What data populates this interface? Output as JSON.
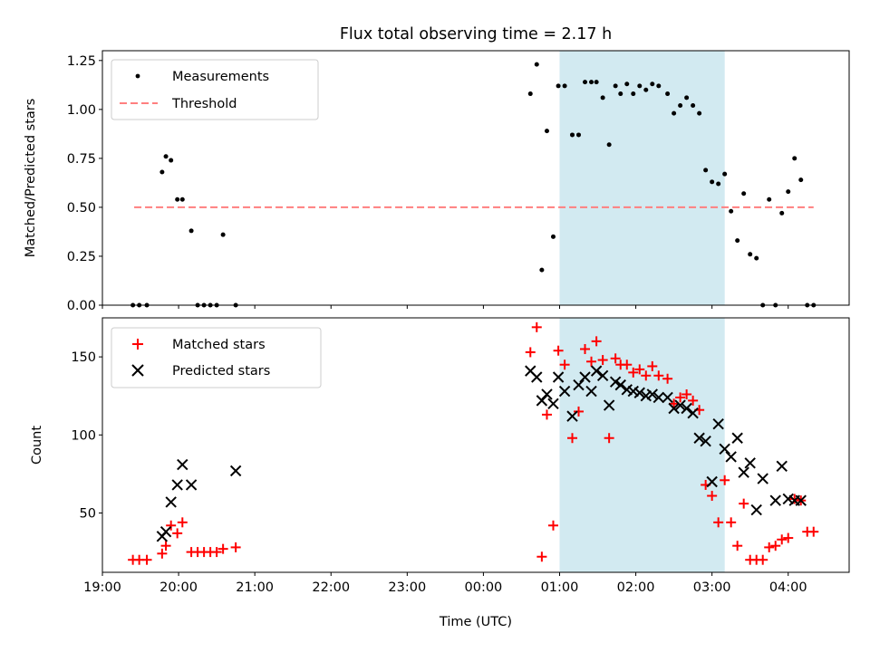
{
  "title": "Flux total observing time = 2.17 h",
  "colors": {
    "matched": "#ff0000",
    "predicted": "#000000",
    "threshold": "#ff7f7f",
    "span": "#add8e6"
  },
  "chart_data": [
    {
      "type": "scatter",
      "title": "Flux total observing time = 2.17 h",
      "xlabel": "",
      "ylabel": "Matched/Predicted stars",
      "x_axis": "time_utc",
      "xlim": [
        "19:00",
        "04:48"
      ],
      "ylim": [
        0,
        1.3
      ],
      "yticks": [
        "0.00",
        "0.25",
        "0.50",
        "0.75",
        "1.00",
        "1.25"
      ],
      "legend": {
        "location": "top-left",
        "entries": [
          "Measurements",
          "Threshold"
        ]
      },
      "highlight_span": [
        "01:00",
        "03:10"
      ],
      "threshold": {
        "name": "Threshold",
        "value": 0.5,
        "x_range": [
          "19:25",
          "04:20"
        ],
        "style": "dashed"
      },
      "series": [
        {
          "name": "Measurements",
          "marker": "dot",
          "x": [
            "19:24",
            "19:29",
            "19:35",
            "19:47",
            "19:50",
            "19:54",
            "19:59",
            "20:03",
            "20:10",
            "20:15",
            "20:20",
            "20:25",
            "20:30",
            "20:35",
            "20:45",
            "00:37",
            "00:42",
            "00:46",
            "00:50",
            "00:55",
            "00:59",
            "01:04",
            "01:10",
            "01:15",
            "01:20",
            "01:25",
            "01:29",
            "01:34",
            "01:39",
            "01:44",
            "01:48",
            "01:53",
            "01:58",
            "02:03",
            "02:08",
            "02:13",
            "02:18",
            "02:25",
            "02:30",
            "02:35",
            "02:40",
            "02:45",
            "02:50",
            "02:55",
            "03:00",
            "03:05",
            "03:10",
            "03:15",
            "03:20",
            "03:25",
            "03:30",
            "03:35",
            "03:40",
            "03:45",
            "03:50",
            "03:55",
            "04:00",
            "04:05",
            "04:10",
            "04:15",
            "04:20"
          ],
          "y": [
            0.0,
            0.0,
            0.0,
            0.68,
            0.76,
            0.74,
            0.54,
            0.54,
            0.38,
            0.0,
            0.0,
            0.0,
            0.0,
            0.36,
            0.0,
            1.08,
            1.23,
            0.18,
            0.89,
            0.35,
            1.12,
            1.12,
            0.87,
            0.87,
            1.14,
            1.14,
            1.14,
            1.06,
            0.82,
            1.12,
            1.08,
            1.13,
            1.08,
            1.12,
            1.1,
            1.13,
            1.12,
            1.08,
            0.98,
            1.02,
            1.06,
            1.02,
            0.98,
            0.69,
            0.63,
            0.62,
            0.67,
            0.48,
            0.33,
            0.57,
            0.26,
            0.24,
            0.0,
            0.54,
            0.0,
            0.47,
            0.58,
            0.75,
            0.64,
            0.0,
            0.0
          ]
        }
      ]
    },
    {
      "type": "scatter",
      "title": "",
      "xlabel": "Time (UTC)",
      "ylabel": "Count",
      "x_axis": "time_utc",
      "xlim": [
        "19:00",
        "04:48"
      ],
      "xticks": [
        "19:00",
        "20:00",
        "21:00",
        "22:00",
        "23:00",
        "00:00",
        "01:00",
        "02:00",
        "03:00",
        "04:00"
      ],
      "ylim": [
        12,
        175
      ],
      "yticks": [
        "50",
        "100",
        "150"
      ],
      "legend": {
        "location": "top-left",
        "entries": [
          "Matched stars",
          "Predicted stars"
        ]
      },
      "highlight_span": [
        "01:00",
        "03:10"
      ],
      "series": [
        {
          "name": "Matched stars",
          "marker": "plus",
          "x": [
            "19:24",
            "19:29",
            "19:35",
            "19:47",
            "19:50",
            "19:54",
            "19:59",
            "20:03",
            "20:10",
            "20:15",
            "20:20",
            "20:25",
            "20:30",
            "20:35",
            "20:45",
            "00:37",
            "00:42",
            "00:46",
            "00:50",
            "00:55",
            "00:59",
            "01:04",
            "01:10",
            "01:15",
            "01:20",
            "01:25",
            "01:29",
            "01:34",
            "01:39",
            "01:44",
            "01:48",
            "01:53",
            "01:58",
            "02:03",
            "02:08",
            "02:13",
            "02:18",
            "02:25",
            "02:30",
            "02:35",
            "02:40",
            "02:45",
            "02:50",
            "02:55",
            "03:00",
            "03:05",
            "03:10",
            "03:15",
            "03:20",
            "03:25",
            "03:30",
            "03:35",
            "03:40",
            "03:45",
            "03:50",
            "03:55",
            "04:00",
            "04:05",
            "04:10",
            "04:15",
            "04:20"
          ],
          "y": [
            20,
            20,
            20,
            24,
            29,
            42,
            37,
            44,
            25,
            25,
            25,
            25,
            25,
            27,
            28,
            153,
            169,
            22,
            113,
            42,
            154,
            145,
            98,
            115,
            155,
            147,
            160,
            148,
            98,
            149,
            145,
            145,
            140,
            142,
            138,
            144,
            138,
            136,
            120,
            124,
            126,
            122,
            116,
            68,
            61,
            44,
            71,
            44,
            29,
            56,
            20,
            20,
            20,
            28,
            29,
            33,
            34,
            59,
            58,
            38,
            38
          ]
        },
        {
          "name": "Predicted stars",
          "marker": "x",
          "x": [
            "19:47",
            "19:50",
            "19:54",
            "19:59",
            "20:03",
            "20:10",
            "20:45",
            "00:37",
            "00:42",
            "00:46",
            "00:50",
            "00:55",
            "00:59",
            "01:04",
            "01:10",
            "01:15",
            "01:20",
            "01:25",
            "01:29",
            "01:34",
            "01:39",
            "01:44",
            "01:48",
            "01:53",
            "01:58",
            "02:03",
            "02:08",
            "02:13",
            "02:18",
            "02:25",
            "02:30",
            "02:35",
            "02:40",
            "02:45",
            "02:50",
            "02:55",
            "03:00",
            "03:05",
            "03:10",
            "03:15",
            "03:20",
            "03:25",
            "03:30",
            "03:35",
            "03:40",
            "03:50",
            "03:55",
            "04:00",
            "04:05",
            "04:10"
          ],
          "y": [
            35,
            38,
            57,
            68,
            81,
            68,
            77,
            141,
            137,
            122,
            126,
            120,
            137,
            128,
            112,
            132,
            137,
            128,
            141,
            138,
            119,
            134,
            132,
            129,
            128,
            127,
            125,
            126,
            124,
            124,
            117,
            119,
            117,
            114,
            98,
            96,
            70,
            107,
            91,
            86,
            98,
            76,
            82,
            52,
            72,
            58,
            80,
            59,
            58,
            58
          ]
        }
      ]
    }
  ]
}
